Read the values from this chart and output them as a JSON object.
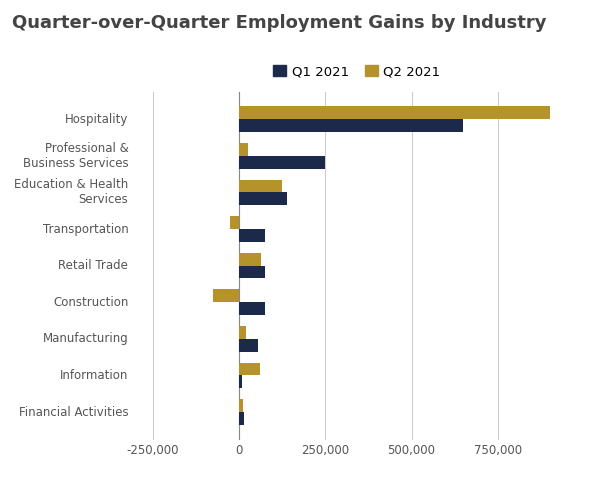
{
  "title": "Quarter-over-Quarter Employment Gains by Industry",
  "categories": [
    "Hospitality",
    "Professional &\nBusiness Services",
    "Education & Health\nServices",
    "Transportation",
    "Retail Trade",
    "Construction",
    "Manufacturing",
    "Information",
    "Financial Activities"
  ],
  "q1_values": [
    650000,
    250000,
    140000,
    75000,
    75000,
    75000,
    55000,
    10000,
    15000
  ],
  "q2_values": [
    900000,
    25000,
    125000,
    -25000,
    65000,
    -75000,
    20000,
    60000,
    12000
  ],
  "q1_color": "#1b2a4a",
  "q2_color": "#b5922a",
  "xlim": [
    -300000,
    1000000
  ],
  "xticks": [
    -250000,
    0,
    250000,
    500000,
    750000
  ],
  "xtick_labels": [
    "-250,000",
    "0",
    "250,000",
    "500,000",
    "750,000"
  ],
  "legend_labels": [
    "Q1 2021",
    "Q2 2021"
  ],
  "background_color": "#ffffff",
  "bar_height": 0.35,
  "title_fontsize": 13,
  "tick_fontsize": 8.5,
  "legend_fontsize": 9.5
}
